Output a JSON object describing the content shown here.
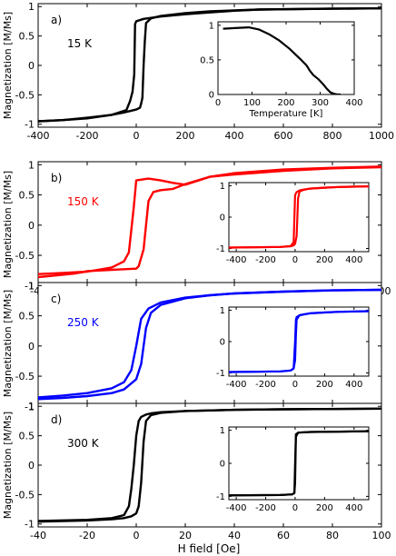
{
  "figure": {
    "ylabel": "Magnetization [M/Ms]",
    "xlabel_bottom": "H field [Oe]"
  },
  "chart_data": [
    {
      "id": "a",
      "type": "line",
      "panel_label": "a)",
      "annotation": "15 K",
      "color": "#000000",
      "xlim": [
        -400,
        1000
      ],
      "ylim": [
        -1.05,
        1.05
      ],
      "xticks": [
        -400,
        -200,
        0,
        200,
        400,
        600,
        800,
        1000
      ],
      "yticks": [
        -1,
        -0.5,
        0,
        0.5,
        1
      ],
      "series": [
        {
          "x": [
            -400,
            -300,
            -200,
            -100,
            -40,
            -25,
            -15,
            -8,
            -5,
            0,
            30,
            100,
            200,
            300,
            400,
            500,
            700,
            1000
          ],
          "y": [
            -0.95,
            -0.93,
            -0.9,
            -0.84,
            -0.76,
            -0.6,
            -0.45,
            -0.15,
            0.7,
            0.75,
            0.79,
            0.83,
            0.87,
            0.9,
            0.93,
            0.95,
            0.96,
            0.97
          ]
        },
        {
          "x": [
            1000,
            800,
            500,
            300,
            200,
            100,
            60,
            40,
            35,
            30,
            25,
            20,
            15,
            0,
            -50,
            -100,
            -200,
            -300,
            -400
          ],
          "y": [
            0.97,
            0.965,
            0.95,
            0.92,
            0.89,
            0.84,
            0.8,
            0.72,
            0.4,
            0.0,
            -0.55,
            -0.65,
            -0.72,
            -0.75,
            -0.8,
            -0.84,
            -0.89,
            -0.93,
            -0.95
          ]
        }
      ],
      "inset": {
        "xlim": [
          0,
          400
        ],
        "ylim": [
          0,
          1.05
        ],
        "xticks": [
          0,
          100,
          200,
          300,
          400
        ],
        "yticks": [
          0,
          0.5,
          1
        ],
        "xlabel": "Temperature [K]",
        "series": [
          {
            "x": [
              15,
              50,
              90,
              120,
              150,
              180,
              210,
              240,
              260,
              270,
              280,
              295,
              310,
              320,
              330,
              340,
              350,
              360
            ],
            "y": [
              0.95,
              0.96,
              0.97,
              0.94,
              0.87,
              0.78,
              0.66,
              0.52,
              0.42,
              0.34,
              0.28,
              0.22,
              0.14,
              0.08,
              0.03,
              0.01,
              0.0,
              0.0
            ]
          }
        ]
      }
    },
    {
      "id": "b",
      "type": "line",
      "panel_label": "b)",
      "annotation": "150 K",
      "color": "#ff0000",
      "xlim": [
        -40,
        100
      ],
      "ylim": [
        -0.95,
        1.05
      ],
      "xticks": [
        -40,
        -20,
        0,
        20,
        40,
        60,
        80,
        100
      ],
      "yticks": [
        -1,
        -0.5,
        0,
        0.5,
        1
      ],
      "series": [
        {
          "x": [
            -40,
            -30,
            -20,
            -10,
            -5,
            -3,
            -1,
            0,
            5,
            10,
            15,
            20,
            30,
            40,
            60,
            80,
            100
          ],
          "y": [
            -0.81,
            -0.79,
            -0.77,
            -0.7,
            -0.6,
            -0.45,
            0.3,
            0.74,
            0.77,
            0.74,
            0.7,
            0.67,
            0.8,
            0.86,
            0.92,
            0.95,
            0.97
          ]
        },
        {
          "x": [
            100,
            80,
            60,
            40,
            30,
            20,
            15,
            10,
            7,
            5,
            3,
            1,
            0,
            -10,
            -20,
            -22,
            -25,
            -30,
            -40
          ],
          "y": [
            0.96,
            0.94,
            0.9,
            0.84,
            0.8,
            0.68,
            0.6,
            0.58,
            0.55,
            0.4,
            -0.4,
            -0.68,
            -0.72,
            -0.74,
            -0.76,
            -0.78,
            -0.8,
            -0.82,
            -0.86
          ]
        }
      ],
      "inset": {
        "xlim": [
          -450,
          500
        ],
        "ylim": [
          -1.1,
          1.1
        ],
        "xticks": [
          -400,
          -200,
          0,
          200,
          400
        ],
        "yticks": [
          -1,
          0,
          1
        ],
        "xlabel": "",
        "series": [
          {
            "x": [
              -450,
              -100,
              -30,
              -10,
              0,
              10,
              30,
              60,
              100,
              200,
              300,
              500
            ],
            "y": [
              -0.97,
              -0.95,
              -0.92,
              -0.8,
              0.7,
              0.8,
              0.85,
              0.88,
              0.91,
              0.94,
              0.96,
              0.98
            ]
          },
          {
            "x": [
              500,
              300,
              100,
              60,
              30,
              20,
              10,
              0,
              -10,
              -30,
              -100,
              -450
            ],
            "y": [
              0.98,
              0.96,
              0.91,
              0.87,
              0.82,
              0.6,
              -0.6,
              -0.85,
              -0.9,
              -0.93,
              -0.95,
              -0.97
            ]
          }
        ]
      }
    },
    {
      "id": "c",
      "type": "line",
      "panel_label": "c)",
      "annotation": "250 K",
      "color": "#0000ff",
      "xlim": [
        -40,
        100
      ],
      "ylim": [
        -0.95,
        1.05
      ],
      "xticks": [
        -40,
        -20,
        0,
        20,
        40,
        60,
        80,
        100
      ],
      "yticks": [
        -1,
        -0.5,
        0,
        0.5,
        1
      ],
      "series": [
        {
          "x": [
            -40,
            -30,
            -20,
            -10,
            -5,
            -2,
            0,
            2,
            5,
            10,
            20,
            30,
            40,
            60,
            80,
            100
          ],
          "y": [
            -0.85,
            -0.82,
            -0.78,
            -0.7,
            -0.6,
            -0.4,
            0.0,
            0.45,
            0.62,
            0.72,
            0.8,
            0.84,
            0.87,
            0.9,
            0.92,
            0.93
          ]
        },
        {
          "x": [
            100,
            80,
            60,
            40,
            30,
            20,
            10,
            6,
            4,
            2,
            0,
            -5,
            -10,
            -20,
            -30,
            -40
          ],
          "y": [
            0.93,
            0.92,
            0.9,
            0.87,
            0.84,
            0.79,
            0.68,
            0.55,
            0.3,
            -0.3,
            -0.55,
            -0.72,
            -0.78,
            -0.83,
            -0.86,
            -0.88
          ]
        }
      ],
      "inset": {
        "xlim": [
          -450,
          500
        ],
        "ylim": [
          -1.1,
          1.1
        ],
        "xticks": [
          -400,
          -200,
          0,
          200,
          400
        ],
        "yticks": [
          -1,
          0,
          1
        ],
        "xlabel": "",
        "series": [
          {
            "x": [
              -450,
              -100,
              -30,
              -10,
              0,
              5,
              10,
              30,
              60,
              100,
              200,
              300,
              500
            ],
            "y": [
              -0.97,
              -0.95,
              -0.92,
              -0.85,
              0.0,
              0.7,
              0.78,
              0.84,
              0.87,
              0.9,
              0.93,
              0.95,
              0.97
            ]
          },
          {
            "x": [
              500,
              300,
              100,
              30,
              10,
              5,
              0,
              -10,
              -30,
              -100,
              -450
            ],
            "y": [
              0.97,
              0.95,
              0.9,
              0.84,
              0.7,
              0.2,
              -0.6,
              -0.86,
              -0.92,
              -0.95,
              -0.97
            ]
          }
        ]
      }
    },
    {
      "id": "d",
      "type": "line",
      "panel_label": "d)",
      "annotation": "300 K",
      "color": "#000000",
      "xlim": [
        -40,
        100
      ],
      "ylim": [
        -1.05,
        1.05
      ],
      "xticks": [
        -40,
        -20,
        0,
        20,
        40,
        60,
        80,
        100
      ],
      "yticks": [
        -1,
        -0.5,
        0,
        0.5,
        1
      ],
      "xlabel": "H field [Oe]",
      "series": [
        {
          "x": [
            -40,
            -20,
            -10,
            -5,
            -3,
            -2,
            -1,
            0,
            1,
            2,
            4,
            6,
            10,
            20,
            40,
            60,
            100
          ],
          "y": [
            -0.95,
            -0.93,
            -0.9,
            -0.85,
            -0.7,
            -0.4,
            0.0,
            0.5,
            0.75,
            0.82,
            0.86,
            0.88,
            0.9,
            0.92,
            0.94,
            0.95,
            0.96
          ]
        },
        {
          "x": [
            100,
            60,
            40,
            20,
            10,
            6,
            4,
            3,
            2,
            1,
            0,
            -2,
            -5,
            -10,
            -20,
            -40
          ],
          "y": [
            0.96,
            0.95,
            0.94,
            0.92,
            0.89,
            0.85,
            0.75,
            0.4,
            -0.3,
            -0.7,
            -0.82,
            -0.87,
            -0.9,
            -0.92,
            -0.94,
            -0.96
          ]
        }
      ],
      "inset": {
        "xlim": [
          -450,
          500
        ],
        "ylim": [
          -1.1,
          1.1
        ],
        "xticks": [
          -400,
          -200,
          0,
          200,
          400
        ],
        "yticks": [
          -1,
          0,
          1
        ],
        "xlabel": "",
        "series": [
          {
            "x": [
              -450,
              -100,
              -20,
              -5,
              0,
              5,
              20,
              100,
              300,
              500
            ],
            "y": [
              -0.97,
              -0.96,
              -0.94,
              -0.9,
              0.0,
              0.88,
              0.93,
              0.95,
              0.96,
              0.97
            ]
          },
          {
            "x": [
              500,
              300,
              100,
              20,
              5,
              0,
              -5,
              -20,
              -100,
              -450
            ],
            "y": [
              0.97,
              0.96,
              0.95,
              0.93,
              0.8,
              -0.6,
              -0.9,
              -0.94,
              -0.96,
              -0.97
            ]
          }
        ]
      }
    }
  ]
}
